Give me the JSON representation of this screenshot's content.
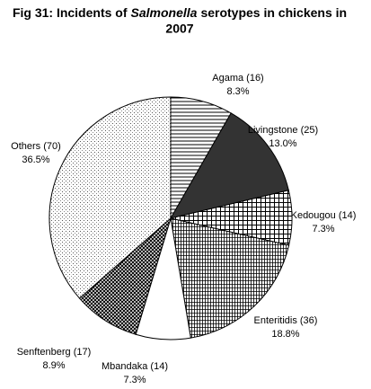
{
  "chart_data": {
    "type": "pie",
    "title": [
      "Fig 31: Incidents of",
      "Salmonella",
      "serotypes in chickens in",
      "2007"
    ],
    "categories": [
      "Agama (16)",
      "Livingstone (25)",
      "Kedougou (14)",
      "Enteritidis (36)",
      "Mbandaka (14)",
      "Senftenberg (17)",
      "Others (70)"
    ],
    "values": [
      8.3,
      13.0,
      7.3,
      18.8,
      7.3,
      8.9,
      36.5
    ],
    "value_labels": [
      "8.3%",
      "13.0%",
      "7.3%",
      "18.8%",
      "7.3%",
      "8.9%",
      "36.5%"
    ],
    "patterns": [
      "hlines",
      "solid",
      "grid",
      "finegrid",
      "white",
      "crosshatch",
      "dots"
    ]
  }
}
